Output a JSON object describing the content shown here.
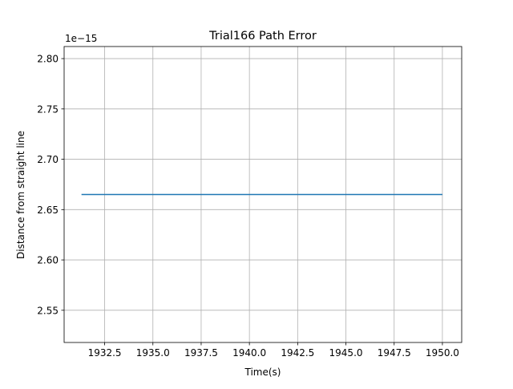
{
  "chart_data": {
    "type": "line",
    "title": "Trial166 Path Error",
    "xlabel": "Time(s)",
    "ylabel": "Distance from straight line",
    "y_offset_label": "1e−15",
    "xlim": [
      1930.4,
      1951.0
    ],
    "ylim": [
      2.518,
      2.812
    ],
    "x_ticks": [
      1932.5,
      1935.0,
      1937.5,
      1940.0,
      1942.5,
      1945.0,
      1947.5,
      1950.0
    ],
    "x_tick_labels": [
      "1932.5",
      "1935.0",
      "1937.5",
      "1940.0",
      "1942.5",
      "1945.0",
      "1947.5",
      "1950.0"
    ],
    "y_ticks": [
      2.55,
      2.6,
      2.65,
      2.7,
      2.75,
      2.8
    ],
    "y_tick_labels": [
      "2.55",
      "2.60",
      "2.65",
      "2.70",
      "2.75",
      "2.80"
    ],
    "grid": true,
    "series": [
      {
        "color": "#1f77b4",
        "x": [
          1931.3,
          1950.0
        ],
        "y": [
          2.665,
          2.665
        ]
      }
    ]
  }
}
